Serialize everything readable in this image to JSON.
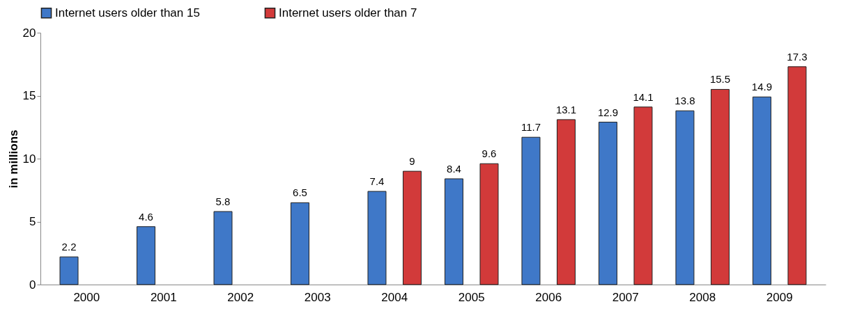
{
  "chart_data": {
    "type": "bar",
    "ylabel": "in millions",
    "categories": [
      "2000",
      "2001",
      "2002",
      "2003",
      "2004",
      "2005",
      "2006",
      "2007",
      "2008",
      "2009"
    ],
    "series": [
      {
        "name": "Internet users older than 15",
        "color": "#3f78c8",
        "values": [
          2.2,
          4.6,
          5.8,
          6.5,
          7.4,
          8.4,
          11.7,
          12.9,
          13.8,
          14.9
        ]
      },
      {
        "name": "Internet users older than 7",
        "color": "#d23a3a",
        "values": [
          null,
          null,
          null,
          null,
          9,
          9.6,
          13.1,
          14.1,
          15.5,
          17.3
        ]
      }
    ],
    "ylim": [
      0,
      20
    ],
    "yticks": [
      0,
      5,
      10,
      15,
      20
    ],
    "data_labels": true,
    "legend": "top",
    "grid": false
  }
}
